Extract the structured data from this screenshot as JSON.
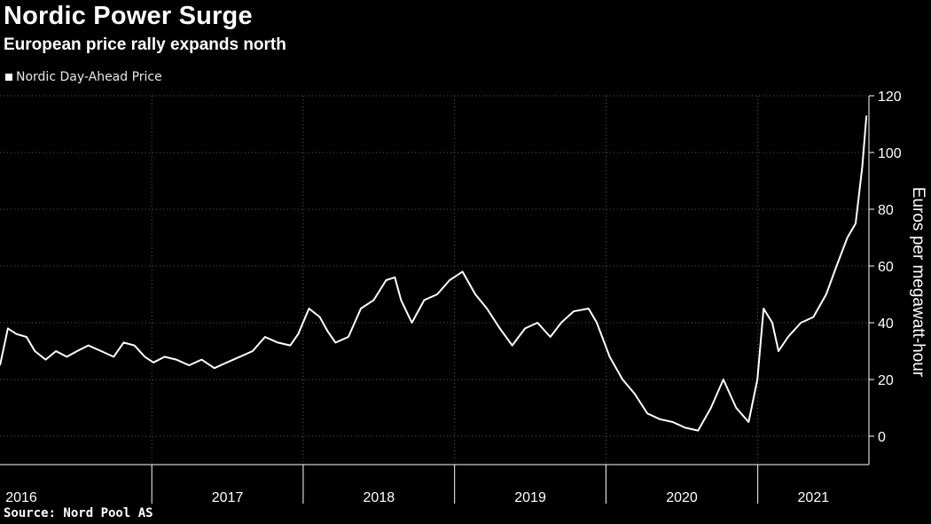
{
  "header": {
    "title": "Nordic Power Surge",
    "subtitle": "European price rally expands north"
  },
  "legend": {
    "label": "Nordic Day-Ahead Price",
    "swatch_color": "#ffffff"
  },
  "footer": {
    "source": "Source: Nord Pool AS"
  },
  "chart_data": {
    "type": "line",
    "title": "Nordic Power Surge",
    "subtitle": "European price rally expands north",
    "ylabel": "Euros per megawatt-hour",
    "xlabel": "",
    "ylim": [
      -10,
      120
    ],
    "yticks": [
      0,
      20,
      40,
      60,
      80,
      100,
      120
    ],
    "y_axis_side": "right",
    "grid": "dotted",
    "legend_position": "top-left",
    "xlim": [
      "2016-01-01",
      "2021-09-26"
    ],
    "year_labels": [
      "2016",
      "2017",
      "2018",
      "2019",
      "2020",
      "2021"
    ],
    "series": [
      {
        "name": "Nordic Day-Ahead Price",
        "color": "#ffffff",
        "x": [
          "2016-01-01",
          "2016-01-20",
          "2016-02-10",
          "2016-03-05",
          "2016-03-25",
          "2016-04-20",
          "2016-05-15",
          "2016-06-10",
          "2016-07-05",
          "2016-08-01",
          "2016-09-01",
          "2016-10-01",
          "2016-10-25",
          "2016-11-20",
          "2016-12-15",
          "2017-01-05",
          "2017-02-01",
          "2017-03-01",
          "2017-04-01",
          "2017-05-01",
          "2017-06-01",
          "2017-07-01",
          "2017-08-01",
          "2017-09-01",
          "2017-10-01",
          "2017-11-01",
          "2017-12-01",
          "2017-12-20",
          "2018-01-15",
          "2018-02-10",
          "2018-03-01",
          "2018-03-20",
          "2018-04-20",
          "2018-05-20",
          "2018-06-20",
          "2018-07-20",
          "2018-08-10",
          "2018-08-25",
          "2018-09-20",
          "2018-10-20",
          "2018-11-20",
          "2018-12-20",
          "2019-01-20",
          "2019-02-20",
          "2019-03-20",
          "2019-04-20",
          "2019-05-20",
          "2019-06-20",
          "2019-07-20",
          "2019-08-20",
          "2019-09-15",
          "2019-10-15",
          "2019-11-20",
          "2019-12-10",
          "2020-01-10",
          "2020-02-10",
          "2020-03-10",
          "2020-04-10",
          "2020-05-10",
          "2020-06-10",
          "2020-07-10",
          "2020-08-10",
          "2020-09-10",
          "2020-10-10",
          "2020-11-10",
          "2020-12-10",
          "2020-12-31",
          "2021-01-15",
          "2021-02-05",
          "2021-02-20",
          "2021-03-15",
          "2021-04-15",
          "2021-05-15",
          "2021-06-15",
          "2021-07-10",
          "2021-08-05",
          "2021-08-25",
          "2021-09-10",
          "2021-09-20"
        ],
        "values": [
          25,
          38,
          36,
          35,
          30,
          27,
          30,
          28,
          30,
          32,
          30,
          28,
          33,
          32,
          28,
          26,
          28,
          27,
          25,
          27,
          24,
          26,
          28,
          30,
          35,
          33,
          32,
          36,
          45,
          42,
          37,
          33,
          35,
          45,
          48,
          55,
          56,
          48,
          40,
          48,
          50,
          55,
          58,
          50,
          45,
          38,
          32,
          38,
          40,
          35,
          40,
          44,
          45,
          40,
          28,
          20,
          15,
          8,
          6,
          5,
          3,
          2,
          10,
          20,
          10,
          5,
          20,
          45,
          40,
          30,
          35,
          40,
          42,
          50,
          60,
          70,
          75,
          95,
          113
        ]
      }
    ]
  }
}
